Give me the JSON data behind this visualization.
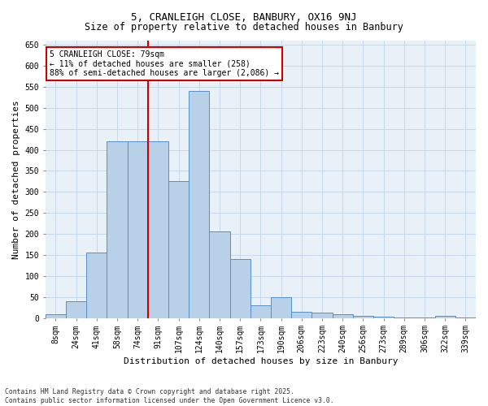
{
  "title1": "5, CRANLEIGH CLOSE, BANBURY, OX16 9NJ",
  "title2": "Size of property relative to detached houses in Banbury",
  "xlabel": "Distribution of detached houses by size in Banbury",
  "ylabel": "Number of detached properties",
  "categories": [
    "8sqm",
    "24sqm",
    "41sqm",
    "58sqm",
    "74sqm",
    "91sqm",
    "107sqm",
    "124sqm",
    "140sqm",
    "157sqm",
    "173sqm",
    "190sqm",
    "206sqm",
    "223sqm",
    "240sqm",
    "256sqm",
    "273sqm",
    "289sqm",
    "306sqm",
    "322sqm",
    "339sqm"
  ],
  "values": [
    8,
    40,
    155,
    420,
    420,
    420,
    325,
    540,
    205,
    140,
    30,
    50,
    14,
    13,
    8,
    5,
    3,
    2,
    1,
    5,
    2
  ],
  "bar_color": "#b8d0e8",
  "bar_edge_color": "#5590c8",
  "grid_color": "#c8d8ec",
  "bg_color": "#e8f0f8",
  "vline_color": "#cc0000",
  "vline_pos": 4.5,
  "annotation_text": "5 CRANLEIGH CLOSE: 79sqm\n← 11% of detached houses are smaller (258)\n88% of semi-detached houses are larger (2,086) →",
  "annotation_box_color": "#ffffff",
  "annotation_box_edge": "#cc0000",
  "footnote": "Contains HM Land Registry data © Crown copyright and database right 2025.\nContains public sector information licensed under the Open Government Licence v3.0.",
  "ylim": [
    0,
    660
  ],
  "yticks": [
    0,
    50,
    100,
    150,
    200,
    250,
    300,
    350,
    400,
    450,
    500,
    550,
    600,
    650
  ],
  "title_fontsize": 9,
  "axis_label_fontsize": 8,
  "tick_fontsize": 7,
  "annotation_fontsize": 7
}
